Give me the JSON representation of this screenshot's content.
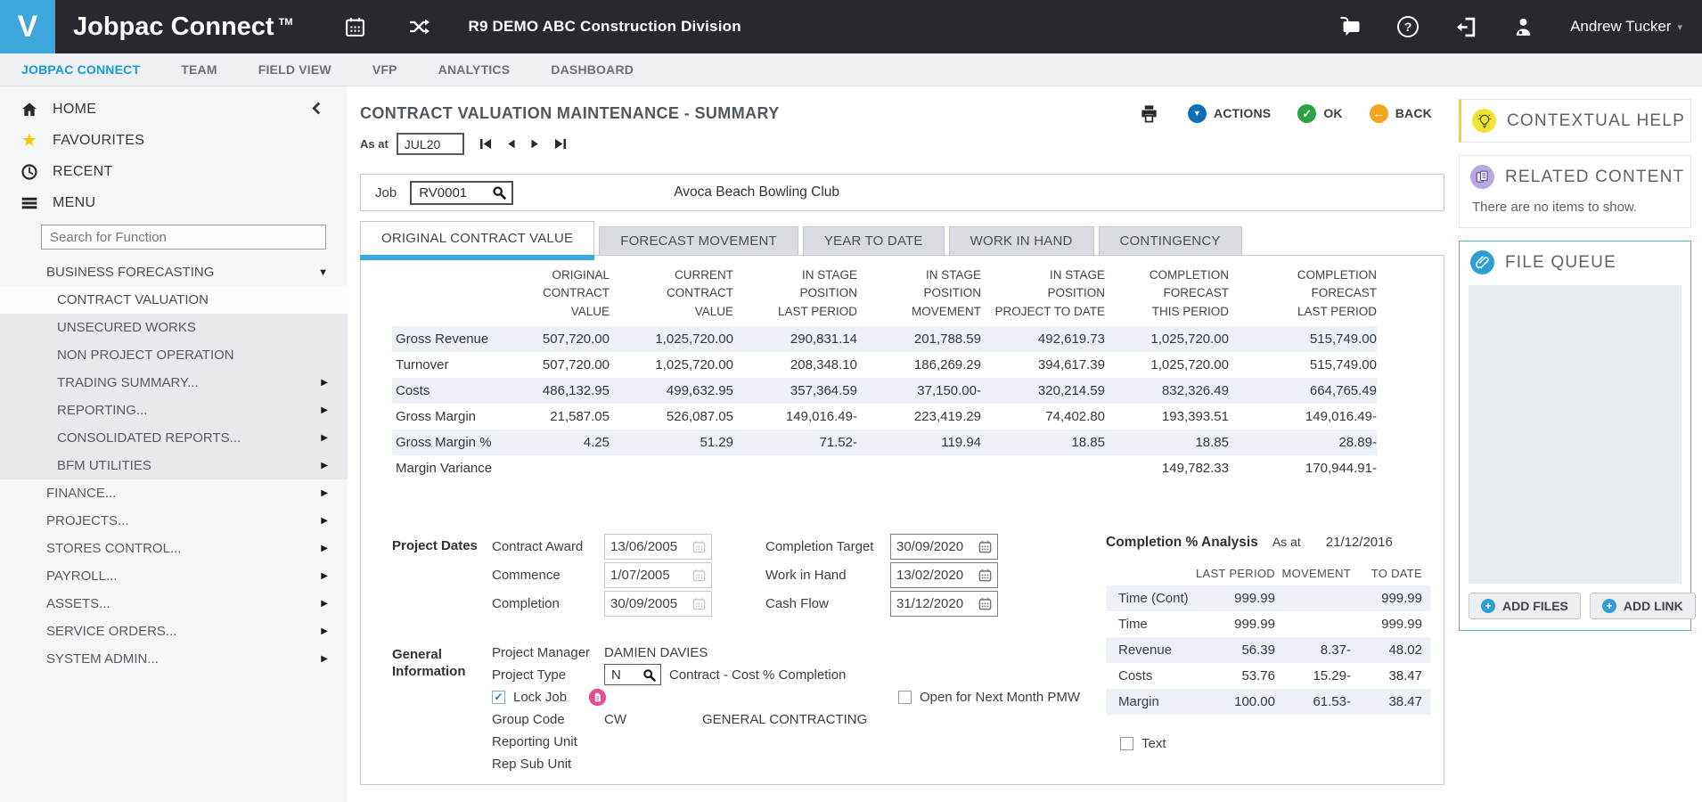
{
  "header": {
    "logo_letter": "V",
    "app_name": "Jobpac Connect",
    "tm": "TM",
    "environment_title": "R9 DEMO ABC Construction Division",
    "user_name": "Andrew Tucker"
  },
  "nav_tabs": [
    "JOBPAC CONNECT",
    "TEAM",
    "FIELD VIEW",
    "VFP",
    "ANALYTICS",
    "DASHBOARD"
  ],
  "nav_active": 0,
  "sidebar": {
    "home_label": "HOME",
    "favourites_label": "FAVOURITES",
    "recent_label": "RECENT",
    "menu_label": "MENU",
    "search_placeholder": "Search for Function",
    "group_label": "BUSINESS FORECASTING",
    "submenu": [
      {
        "label": "CONTRACT VALUATION",
        "selected": true,
        "arrow": false
      },
      {
        "label": "UNSECURED WORKS",
        "arrow": false
      },
      {
        "label": "NON PROJECT OPERATION",
        "arrow": false
      },
      {
        "label": "TRADING SUMMARY...",
        "arrow": true
      },
      {
        "label": "REPORTING...",
        "arrow": true
      },
      {
        "label": "CONSOLIDATED REPORTS...",
        "arrow": true
      },
      {
        "label": "BFM UTILITIES",
        "arrow": true
      }
    ],
    "root_items": [
      {
        "label": "FINANCE...",
        "arrow": true
      },
      {
        "label": "PROJECTS...",
        "arrow": true
      },
      {
        "label": "STORES CONTROL...",
        "arrow": true
      },
      {
        "label": "PAYROLL...",
        "arrow": true
      },
      {
        "label": "ASSETS...",
        "arrow": true
      },
      {
        "label": "SERVICE ORDERS...",
        "arrow": true
      },
      {
        "label": "SYSTEM ADMIN...",
        "arrow": true
      }
    ]
  },
  "page": {
    "title": "CONTRACT VALUATION MAINTENANCE - SUMMARY",
    "actions_label": "ACTIONS",
    "ok_label": "OK",
    "back_label": "BACK",
    "as_at": {
      "label": "As at",
      "value": "JUL20"
    },
    "job": {
      "label": "Job",
      "code": "RV0001",
      "name": "Avoca Beach Bowling Club"
    },
    "tabs": [
      "ORIGINAL CONTRACT VALUE",
      "FORECAST MOVEMENT",
      "YEAR TO DATE",
      "WORK IN HAND",
      "CONTINGENCY"
    ],
    "active_tab": 0
  },
  "valuation_table": {
    "columns_lines": [
      [
        "ORIGINAL",
        "CONTRACT",
        "VALUE"
      ],
      [
        "CURRENT",
        "CONTRACT",
        "VALUE"
      ],
      [
        "IN STAGE",
        "POSITION",
        "LAST PERIOD"
      ],
      [
        "IN STAGE",
        "POSITION",
        "MOVEMENT"
      ],
      [
        "IN STAGE",
        "POSITION",
        "PROJECT TO DATE"
      ],
      [
        "COMPLETION",
        "FORECAST",
        "THIS PERIOD"
      ],
      [
        "COMPLETION",
        "FORECAST",
        "LAST PERIOD"
      ]
    ],
    "rows": [
      {
        "label": "Gross Revenue",
        "values": [
          "507,720.00",
          "1,025,720.00",
          "290,831.14",
          "201,788.59",
          "492,619.73",
          "1,025,720.00",
          "515,749.00"
        ]
      },
      {
        "label": "Turnover",
        "values": [
          "507,720.00",
          "1,025,720.00",
          "208,348.10",
          "186,269.29",
          "394,617.39",
          "1,025,720.00",
          "515,749.00"
        ]
      },
      {
        "label": "Costs",
        "values": [
          "486,132.95",
          "499,632.95",
          "357,364.59",
          "37,150.00-",
          "320,214.59",
          "832,326.49",
          "664,765.49"
        ]
      },
      {
        "label": "Gross Margin",
        "values": [
          "21,587.05",
          "526,087.05",
          "149,016.49-",
          "223,419.29",
          "74,402.80",
          "193,393.51",
          "149,016.49-"
        ]
      },
      {
        "label": "Gross Margin %",
        "values": [
          "4.25",
          "51.29",
          "71.52-",
          "119.94",
          "18.85",
          "18.85",
          "28.89-"
        ]
      },
      {
        "label": "Margin Variance",
        "values": [
          "",
          "",
          "",
          "",
          "",
          "149,782.33",
          "170,944.91-"
        ]
      }
    ]
  },
  "project_dates": {
    "section_label": "Project Dates",
    "left": [
      {
        "label": "Contract Award",
        "value": "13/06/2005",
        "disabled": true
      },
      {
        "label": "Commence",
        "value": "1/07/2005",
        "disabled": true
      },
      {
        "label": "Completion",
        "value": "30/09/2005",
        "disabled": true
      }
    ],
    "right": [
      {
        "label": "Completion Target",
        "value": "30/09/2020",
        "disabled": false
      },
      {
        "label": "Work in Hand",
        "value": "13/02/2020",
        "disabled": false
      },
      {
        "label": "Cash Flow",
        "value": "31/12/2020",
        "disabled": false
      }
    ]
  },
  "general_info": {
    "section_label": "General Information",
    "project_manager_label": "Project Manager",
    "project_manager": "DAMIEN DAVIES",
    "project_type_label": "Project Type",
    "project_type_code": "N",
    "project_type_desc": "Contract - Cost % Completion",
    "lock_job_label": "Lock Job",
    "open_next_month_label": "Open for Next Month PMW",
    "group_code_label": "Group Code",
    "group_code": "CW",
    "group_code_desc": "GENERAL CONTRACTING",
    "reporting_unit_label": "Reporting Unit",
    "rep_sub_unit_label": "Rep Sub Unit",
    "text_checkbox_label": "Text"
  },
  "completion_analysis": {
    "title": "Completion % Analysis",
    "as_at_label": "As at",
    "as_at_value": "21/12/2016",
    "columns": [
      "LAST PERIOD",
      "MOVEMENT",
      "TO DATE"
    ],
    "rows": [
      {
        "label": "Time (Cont)",
        "values": [
          "999.99",
          "",
          "999.99"
        ]
      },
      {
        "label": "Time",
        "values": [
          "999.99",
          "",
          "999.99"
        ]
      },
      {
        "label": "Revenue",
        "values": [
          "56.39",
          "8.37-",
          "48.02"
        ]
      },
      {
        "label": "Costs",
        "values": [
          "53.76",
          "15.29-",
          "38.47"
        ]
      },
      {
        "label": "Margin",
        "values": [
          "100.00",
          "61.53-",
          "38.47"
        ]
      }
    ]
  },
  "help_panel": {
    "contextual_help": "CONTEXTUAL HELP",
    "related_content": "RELATED CONTENT",
    "related_empty": "There are no items to show.",
    "file_queue": "FILE QUEUE",
    "add_files": "ADD FILES",
    "add_link": "ADD LINK"
  },
  "icons": {
    "caret_down": "▼",
    "arrow_right": "▶",
    "star": "★",
    "check": "✓",
    "back_arrow": "←",
    "plus": "+",
    "question": "?",
    "user_caret": "▾"
  },
  "colors": {
    "header_bg": "#26292e",
    "logo_blue": "#3da7dc",
    "nav_active_blue": "#199bd8",
    "tab_accent_blue": "#3aa9e0",
    "actions_blue": "#0d6fb8",
    "ok_green": "#2ba244",
    "back_orange": "#f2a51f",
    "row_alt": "#edf1f7",
    "bulb_yellow": "#efe334",
    "related_purple": "#b7a6df",
    "filequeue_blue": "#2d9fd6",
    "lock_badge_pink": "#e74b92"
  }
}
